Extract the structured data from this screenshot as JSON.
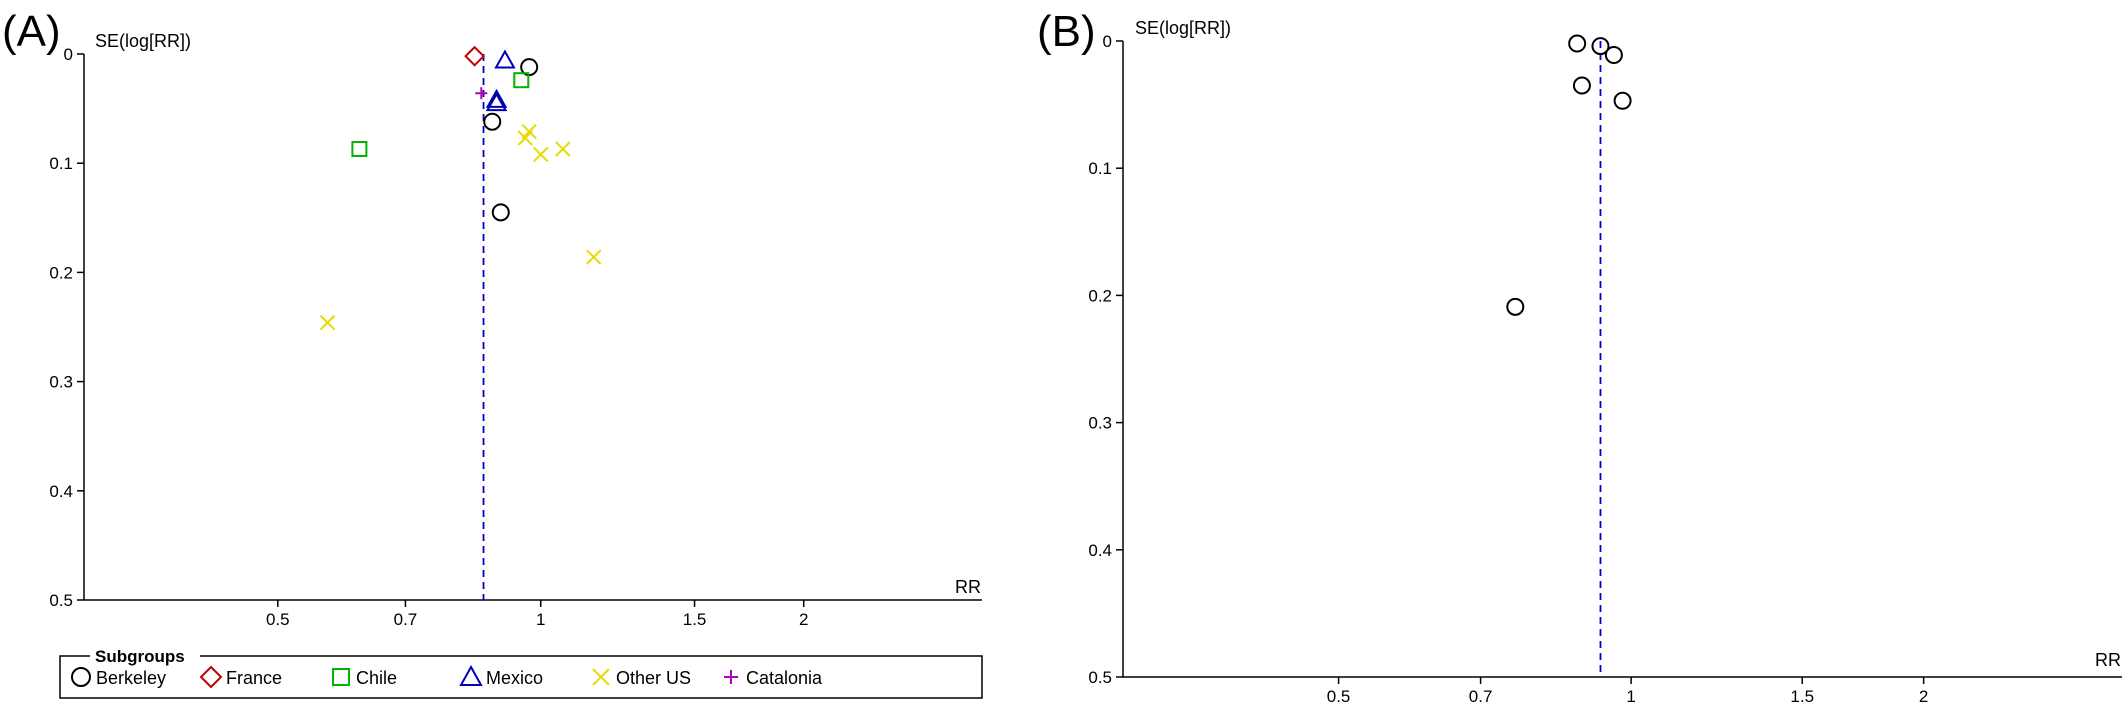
{
  "colors": {
    "axis": "#000000",
    "reference_line": "#0000cc",
    "Berkeley": "#000000",
    "France": "#c00000",
    "Chile": "#00b400",
    "Mexico": "#0000b4",
    "Other US": "#e6dc00",
    "Catalonia": "#b400b4"
  },
  "chart_data": [
    {
      "type": "scatter",
      "panel_label": "(A)",
      "title": "",
      "xlabel": "RR",
      "ylabel": "SE(log[RR])",
      "x_scale": "log",
      "y_inverted": true,
      "xlim": [
        0.3,
        3.2
      ],
      "ylim": [
        0,
        0.5
      ],
      "x_ticks": [
        0.5,
        0.7,
        1,
        1.5,
        2
      ],
      "x_tick_labels": [
        "0.5",
        "0.7",
        "1",
        "1.5",
        "2"
      ],
      "y_ticks": [
        0,
        0.1,
        0.2,
        0.3,
        0.4,
        0.5
      ],
      "y_tick_labels": [
        "0",
        "0.1",
        "0.2",
        "0.3",
        "0.4",
        "0.5"
      ],
      "reference_line_x": 0.86,
      "legend": {
        "title": "Subgroups",
        "position": "bottom",
        "entries": [
          {
            "label": "Berkeley",
            "marker": "circle"
          },
          {
            "label": "France",
            "marker": "diamond"
          },
          {
            "label": "Chile",
            "marker": "square"
          },
          {
            "label": "Mexico",
            "marker": "triangle"
          },
          {
            "label": "Other US",
            "marker": "x"
          },
          {
            "label": "Catalonia",
            "marker": "plus"
          }
        ]
      },
      "series": [
        {
          "name": "Berkeley",
          "marker": "circle",
          "points": [
            {
              "x": 0.97,
              "y": 0.012
            },
            {
              "x": 0.88,
              "y": 0.062
            },
            {
              "x": 0.9,
              "y": 0.145
            }
          ]
        },
        {
          "name": "France",
          "marker": "diamond",
          "points": [
            {
              "x": 0.84,
              "y": 0.002
            }
          ]
        },
        {
          "name": "Chile",
          "marker": "square",
          "points": [
            {
              "x": 0.95,
              "y": 0.024
            },
            {
              "x": 0.62,
              "y": 0.087
            }
          ]
        },
        {
          "name": "Mexico",
          "marker": "triangle",
          "points": [
            {
              "x": 0.91,
              "y": 0.006
            },
            {
              "x": 0.89,
              "y": 0.042
            },
            {
              "x": 0.89,
              "y": 0.045
            }
          ]
        },
        {
          "name": "Other US",
          "marker": "x",
          "points": [
            {
              "x": 0.97,
              "y": 0.071
            },
            {
              "x": 0.96,
              "y": 0.077
            },
            {
              "x": 1.0,
              "y": 0.092
            },
            {
              "x": 1.06,
              "y": 0.087
            },
            {
              "x": 1.15,
              "y": 0.186
            },
            {
              "x": 0.57,
              "y": 0.246
            }
          ]
        },
        {
          "name": "Catalonia",
          "marker": "plus",
          "points": [
            {
              "x": 0.855,
              "y": 0.036
            }
          ]
        }
      ]
    },
    {
      "type": "scatter",
      "panel_label": "(B)",
      "title": "",
      "xlabel": "RR",
      "ylabel": "SE(log[RR])",
      "x_scale": "log",
      "y_inverted": true,
      "xlim": [
        0.3,
        3.2
      ],
      "ylim": [
        0,
        0.5
      ],
      "x_ticks": [
        0.5,
        0.7,
        1,
        1.5,
        2
      ],
      "x_tick_labels": [
        "0.5",
        "0.7",
        "1",
        "1.5",
        "2"
      ],
      "y_ticks": [
        0,
        0.1,
        0.2,
        0.3,
        0.4,
        0.5
      ],
      "y_tick_labels": [
        "0",
        "0.1",
        "0.2",
        "0.3",
        "0.4",
        "0.5"
      ],
      "reference_line_x": 0.93,
      "series": [
        {
          "marker": "circle",
          "points": [
            {
              "x": 0.88,
              "y": 0.002
            },
            {
              "x": 0.93,
              "y": 0.004
            },
            {
              "x": 0.96,
              "y": 0.011
            },
            {
              "x": 0.89,
              "y": 0.035
            },
            {
              "x": 0.98,
              "y": 0.047
            },
            {
              "x": 0.76,
              "y": 0.209
            }
          ]
        }
      ]
    }
  ]
}
